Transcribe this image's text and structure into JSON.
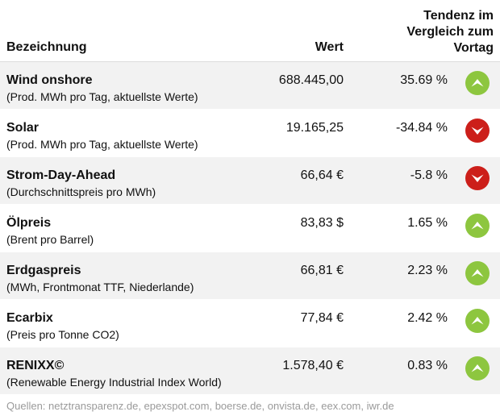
{
  "header": {
    "name": "Bezeichnung",
    "value": "Wert",
    "trend_line1": "Tendenz im",
    "trend_line2": "Vergleich zum",
    "trend_line3": "Vortag"
  },
  "rows": [
    {
      "title": "Wind onshore",
      "subtitle": "(Prod. MWh pro Tag, aktuellste Werte)",
      "value": "688.445,00",
      "change": "35.69 %",
      "direction": "up"
    },
    {
      "title": "Solar",
      "subtitle": "(Prod. MWh pro Tag, aktuellste Werte)",
      "value": "19.165,25",
      "change": "-34.84 %",
      "direction": "down"
    },
    {
      "title": "Strom-Day-Ahead",
      "subtitle": "(Durchschnittspreis pro MWh)",
      "value": "66,64 €",
      "change": "-5.8 %",
      "direction": "down"
    },
    {
      "title": "Ölpreis",
      "subtitle": "(Brent pro Barrel)",
      "value": "83,83 $",
      "change": "1.65 %",
      "direction": "up"
    },
    {
      "title": "Erdgaspreis",
      "subtitle": "(MWh, Frontmonat TTF, Niederlande)",
      "value": "66,81 €",
      "change": "2.23 %",
      "direction": "up"
    },
    {
      "title": "Ecarbix",
      "subtitle": "(Preis pro Tonne CO2)",
      "value": "77,84 €",
      "change": "2.42 %",
      "direction": "up"
    },
    {
      "title": "RENIXX©",
      "subtitle": "(Renewable Energy Industrial Index World)",
      "value": "1.578,40 €",
      "change": "0.83 %",
      "direction": "up"
    }
  ],
  "footer": "Quellen: netztransparenz.de, epexspot.com, boerse.de, onvista.de, eex.com, iwr.de",
  "colors": {
    "up": "#8dc63f",
    "down": "#cc1f1a",
    "row_shade": "#f2f2f2"
  },
  "icons": {
    "up": "chevron-up-circle-icon",
    "down": "chevron-down-circle-icon"
  }
}
